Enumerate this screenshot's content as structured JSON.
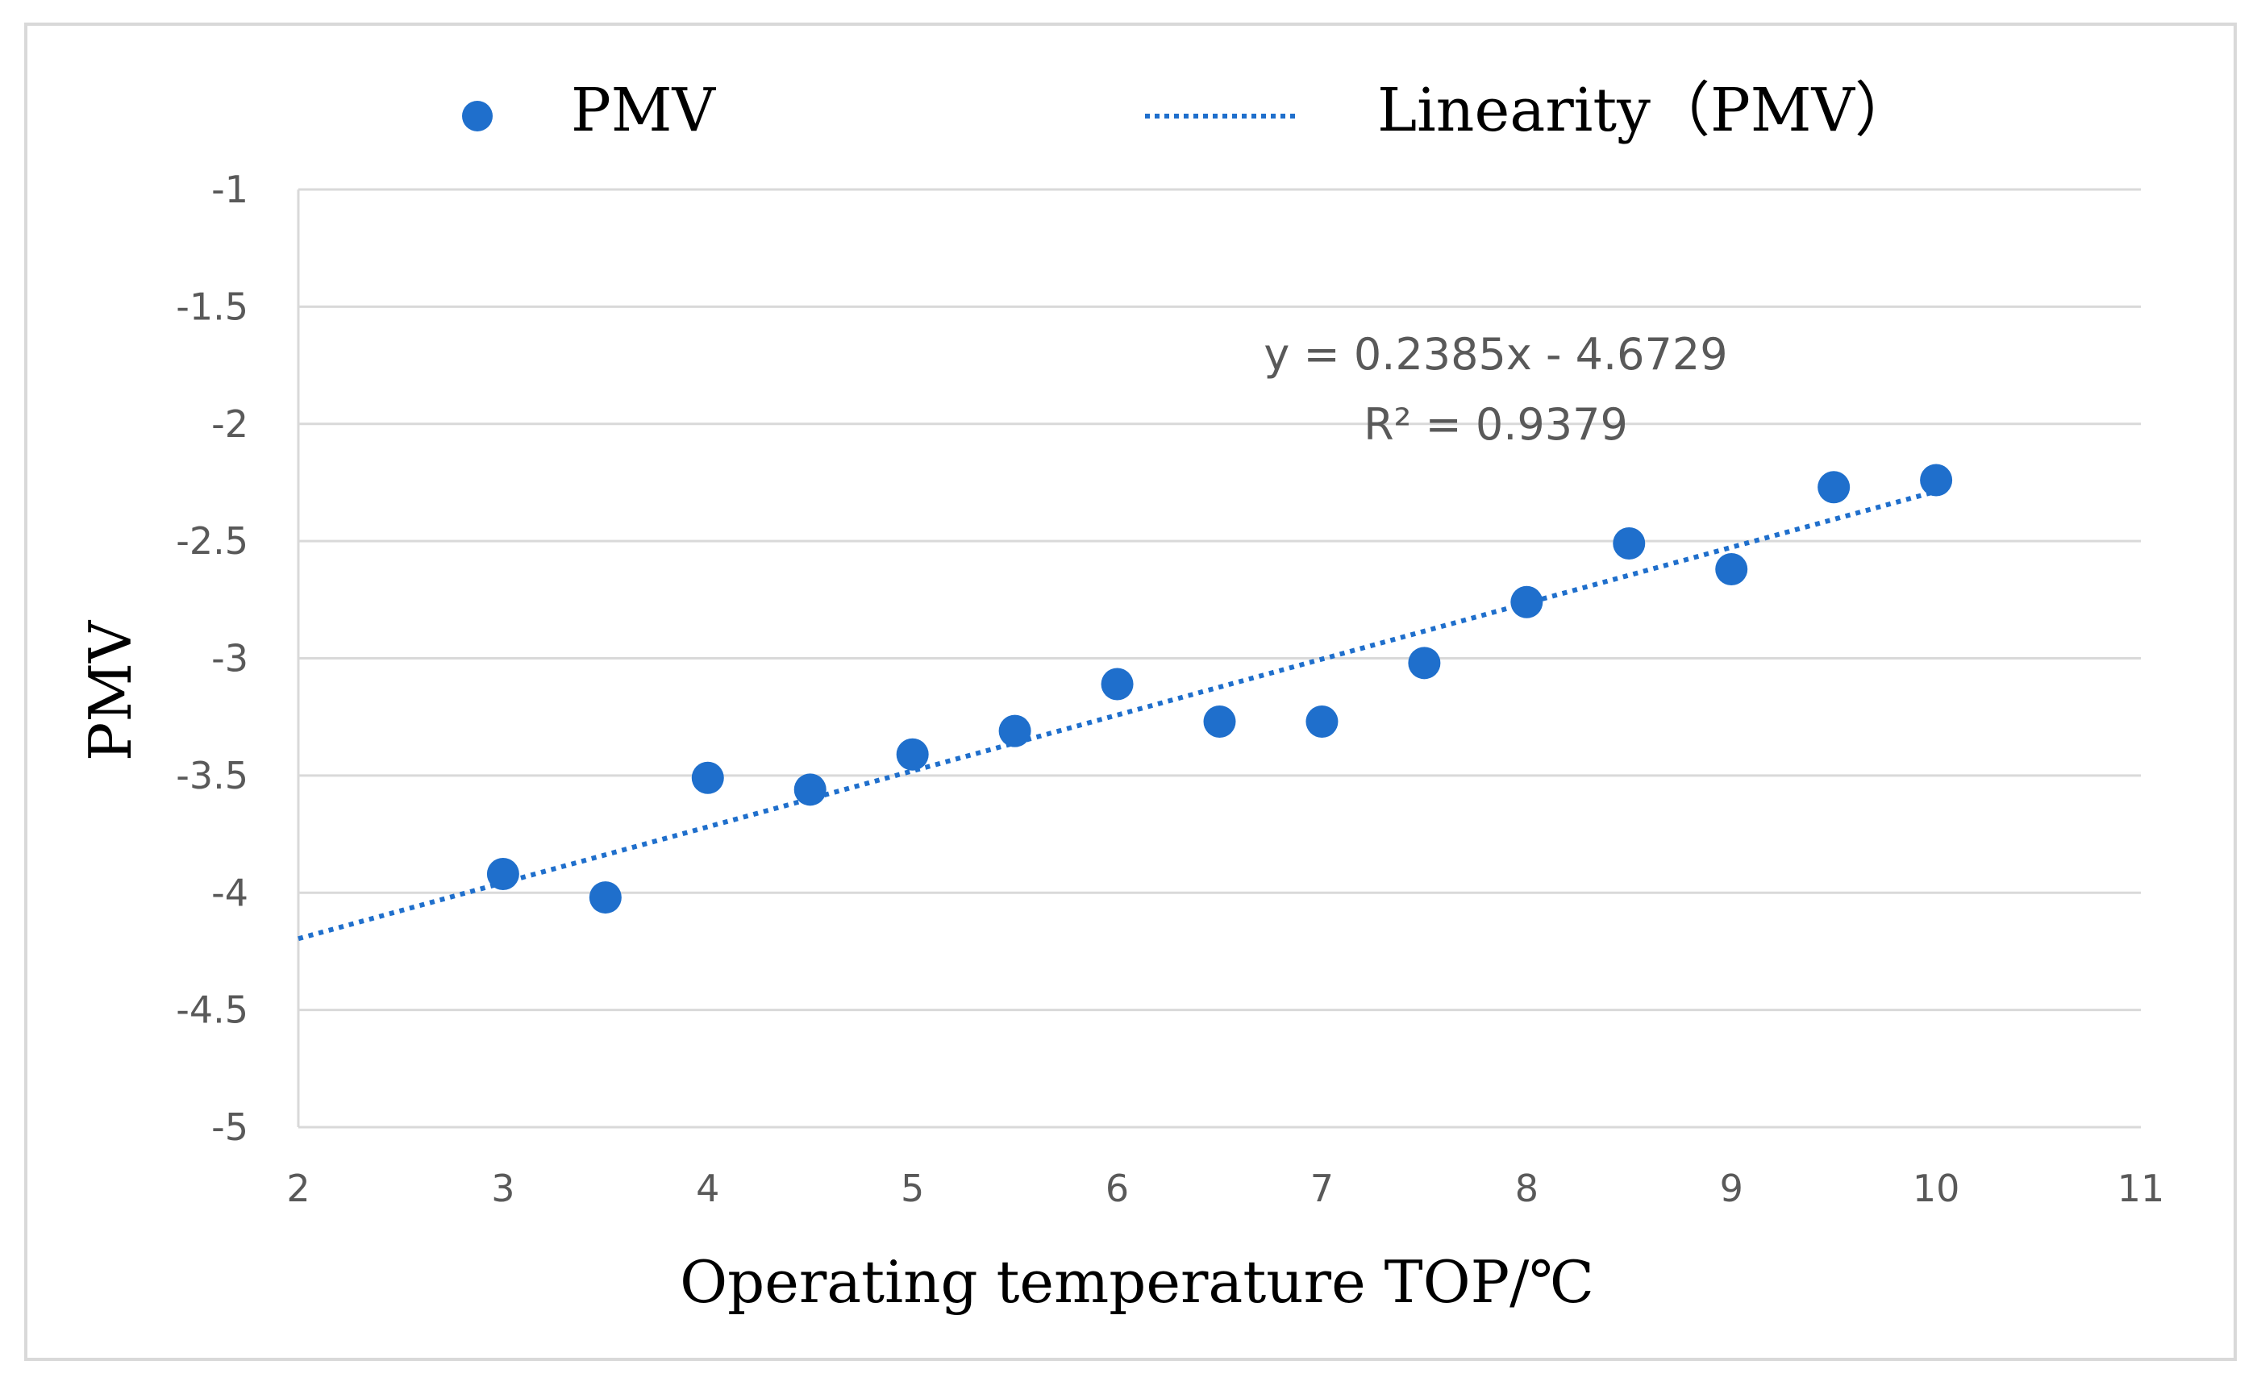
{
  "chart_data": {
    "type": "scatter",
    "series": [
      {
        "name": "PMV",
        "color": "#1f6fcc",
        "x": [
          3,
          3.5,
          4,
          4.5,
          5,
          5.5,
          6,
          6.5,
          7,
          7.5,
          8,
          8.5,
          9,
          9.5,
          10
        ],
        "y": [
          -3.92,
          -4.02,
          -3.51,
          -3.56,
          -3.41,
          -3.31,
          -3.11,
          -3.27,
          -3.27,
          -3.02,
          -2.76,
          -2.51,
          -2.62,
          -2.27,
          -2.24
        ]
      }
    ],
    "trendline": {
      "name": "Linearity（PMV）",
      "slope": 0.2385,
      "intercept": -4.6729,
      "x_range": [
        2,
        10
      ],
      "style": "dotted",
      "color": "#1f6fcc",
      "equation": "y = 0.2385x - 4.6729",
      "r_squared": "R² = 0.9379"
    },
    "legend": {
      "position": "top",
      "entries": [
        "PMV",
        "Linearity（PMV）"
      ]
    },
    "xlabel": "Operating temperature TOP/℃",
    "ylabel": "PMV",
    "xlim": [
      2,
      11
    ],
    "ylim": [
      -5,
      -1
    ],
    "xticks": [
      "2",
      "3",
      "4",
      "5",
      "6",
      "7",
      "8",
      "9",
      "10",
      "11"
    ],
    "yticks": [
      "-1",
      "-1.5",
      "-2",
      "-2.5",
      "-3",
      "-3.5",
      "-4",
      "-4.5",
      "-5"
    ],
    "grid": "horizontal"
  }
}
